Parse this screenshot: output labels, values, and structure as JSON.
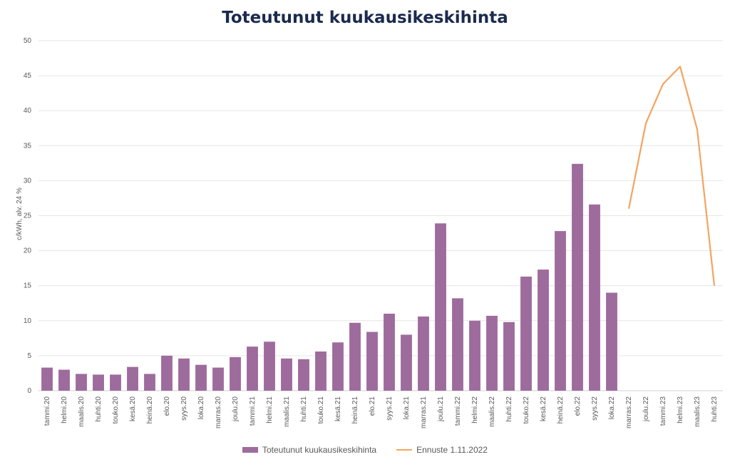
{
  "chart_data": {
    "type": "bar",
    "title": "Toteutunut kuukausikeskihinta",
    "ylabel": "c/kWh, alv. 24 %",
    "ylim": [
      0,
      50
    ],
    "yticks": [
      0,
      5,
      10,
      15,
      20,
      25,
      30,
      35,
      40,
      45,
      50
    ],
    "grid": true,
    "legend_position": "bottom",
    "categories": [
      "tammi.20",
      "helmi.20",
      "maalis.20",
      "huhti.20",
      "touko.20",
      "kesä.20",
      "heinä.20",
      "elo.20",
      "syys.20",
      "loka.20",
      "marras.20",
      "joulu.20",
      "tammi.21",
      "helmi.21",
      "maalis.21",
      "huhti.21",
      "touko.21",
      "kesä.21",
      "heinä.21",
      "elo.21",
      "syys.21",
      "loka.21",
      "marras.21",
      "joulu.21",
      "tammi.22",
      "helmi.22",
      "maalis.22",
      "huhti.22",
      "touko.22",
      "kesä.22",
      "heinä.22",
      "elo.22",
      "syys.22",
      "loka.22",
      "marras.22",
      "joulu.22",
      "tammi.23",
      "helmi.23",
      "maalis.23",
      "huhti.23"
    ],
    "series": [
      {
        "name": "Toteutunut kuukausikeskihinta",
        "type": "bar",
        "color": "#9e6b9d",
        "values": [
          3.3,
          3.0,
          2.4,
          2.3,
          2.3,
          3.4,
          2.4,
          5.0,
          4.6,
          3.7,
          3.3,
          4.8,
          6.3,
          7.0,
          4.6,
          4.5,
          5.6,
          6.9,
          9.7,
          8.4,
          11.0,
          8.0,
          10.6,
          23.9,
          13.2,
          10.0,
          10.7,
          9.8,
          16.3,
          17.3,
          22.8,
          32.4,
          26.6,
          14.0,
          null,
          null,
          null,
          null,
          null,
          null
        ]
      },
      {
        "name": "Ennuste 1.11.2022",
        "type": "line",
        "color": "#f4a460",
        "values": [
          null,
          null,
          null,
          null,
          null,
          null,
          null,
          null,
          null,
          null,
          null,
          null,
          null,
          null,
          null,
          null,
          null,
          null,
          null,
          null,
          null,
          null,
          null,
          null,
          null,
          null,
          null,
          null,
          null,
          null,
          null,
          null,
          null,
          null,
          26.0,
          38.2,
          43.8,
          46.3,
          37.3,
          15.0
        ]
      }
    ]
  }
}
